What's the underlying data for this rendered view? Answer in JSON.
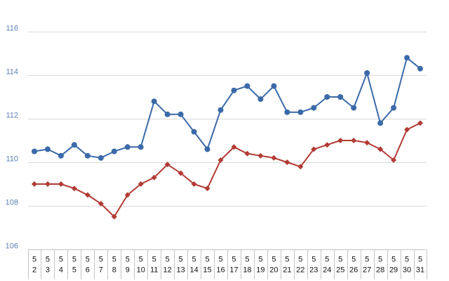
{
  "chart_data": {
    "type": "line",
    "title": "",
    "xlabel": "",
    "ylabel": "",
    "ylim": [
      106,
      116
    ],
    "yticks": [
      106,
      108,
      110,
      112,
      114,
      116
    ],
    "grid": true,
    "legend": "none",
    "categories": [
      {
        "month": "5",
        "day": "2"
      },
      {
        "month": "5",
        "day": "3"
      },
      {
        "month": "5",
        "day": "4"
      },
      {
        "month": "5",
        "day": "5"
      },
      {
        "month": "5",
        "day": "6"
      },
      {
        "month": "5",
        "day": "7"
      },
      {
        "month": "5",
        "day": "8"
      },
      {
        "month": "5",
        "day": "9"
      },
      {
        "month": "5",
        "day": "10"
      },
      {
        "month": "5",
        "day": "11"
      },
      {
        "month": "5",
        "day": "12"
      },
      {
        "month": "5",
        "day": "13"
      },
      {
        "month": "5",
        "day": "14"
      },
      {
        "month": "5",
        "day": "15"
      },
      {
        "month": "5",
        "day": "16"
      },
      {
        "month": "5",
        "day": "17"
      },
      {
        "month": "5",
        "day": "18"
      },
      {
        "month": "5",
        "day": "19"
      },
      {
        "month": "5",
        "day": "20"
      },
      {
        "month": "5",
        "day": "21"
      },
      {
        "month": "5",
        "day": "22"
      },
      {
        "month": "5",
        "day": "23"
      },
      {
        "month": "5",
        "day": "24"
      },
      {
        "month": "5",
        "day": "25"
      },
      {
        "month": "5",
        "day": "26"
      },
      {
        "month": "5",
        "day": "27"
      },
      {
        "month": "5",
        "day": "28"
      },
      {
        "month": "5",
        "day": "29"
      },
      {
        "month": "5",
        "day": "30"
      },
      {
        "month": "5",
        "day": "31"
      }
    ],
    "series": [
      {
        "color": "#3b6aa8",
        "marker": "circle",
        "values": [
          110.5,
          110.6,
          110.3,
          110.8,
          110.3,
          110.2,
          110.5,
          110.7,
          110.7,
          112.8,
          112.2,
          112.2,
          111.4,
          110.6,
          112.4,
          113.3,
          113.5,
          112.9,
          113.5,
          112.3,
          112.3,
          112.5,
          113.0,
          113.0,
          112.5,
          114.1,
          111.8,
          112.5,
          114.8,
          114.3
        ]
      },
      {
        "color": "#b23b35",
        "marker": "diamond",
        "values": [
          109.0,
          109.0,
          109.0,
          108.8,
          108.5,
          108.1,
          107.5,
          108.5,
          109.0,
          109.3,
          109.9,
          109.5,
          109.0,
          108.8,
          110.1,
          110.7,
          110.4,
          110.3,
          110.2,
          110.0,
          109.8,
          110.6,
          110.8,
          111.0,
          111.0,
          110.9,
          110.6,
          110.1,
          111.5,
          111.8
        ]
      }
    ]
  }
}
